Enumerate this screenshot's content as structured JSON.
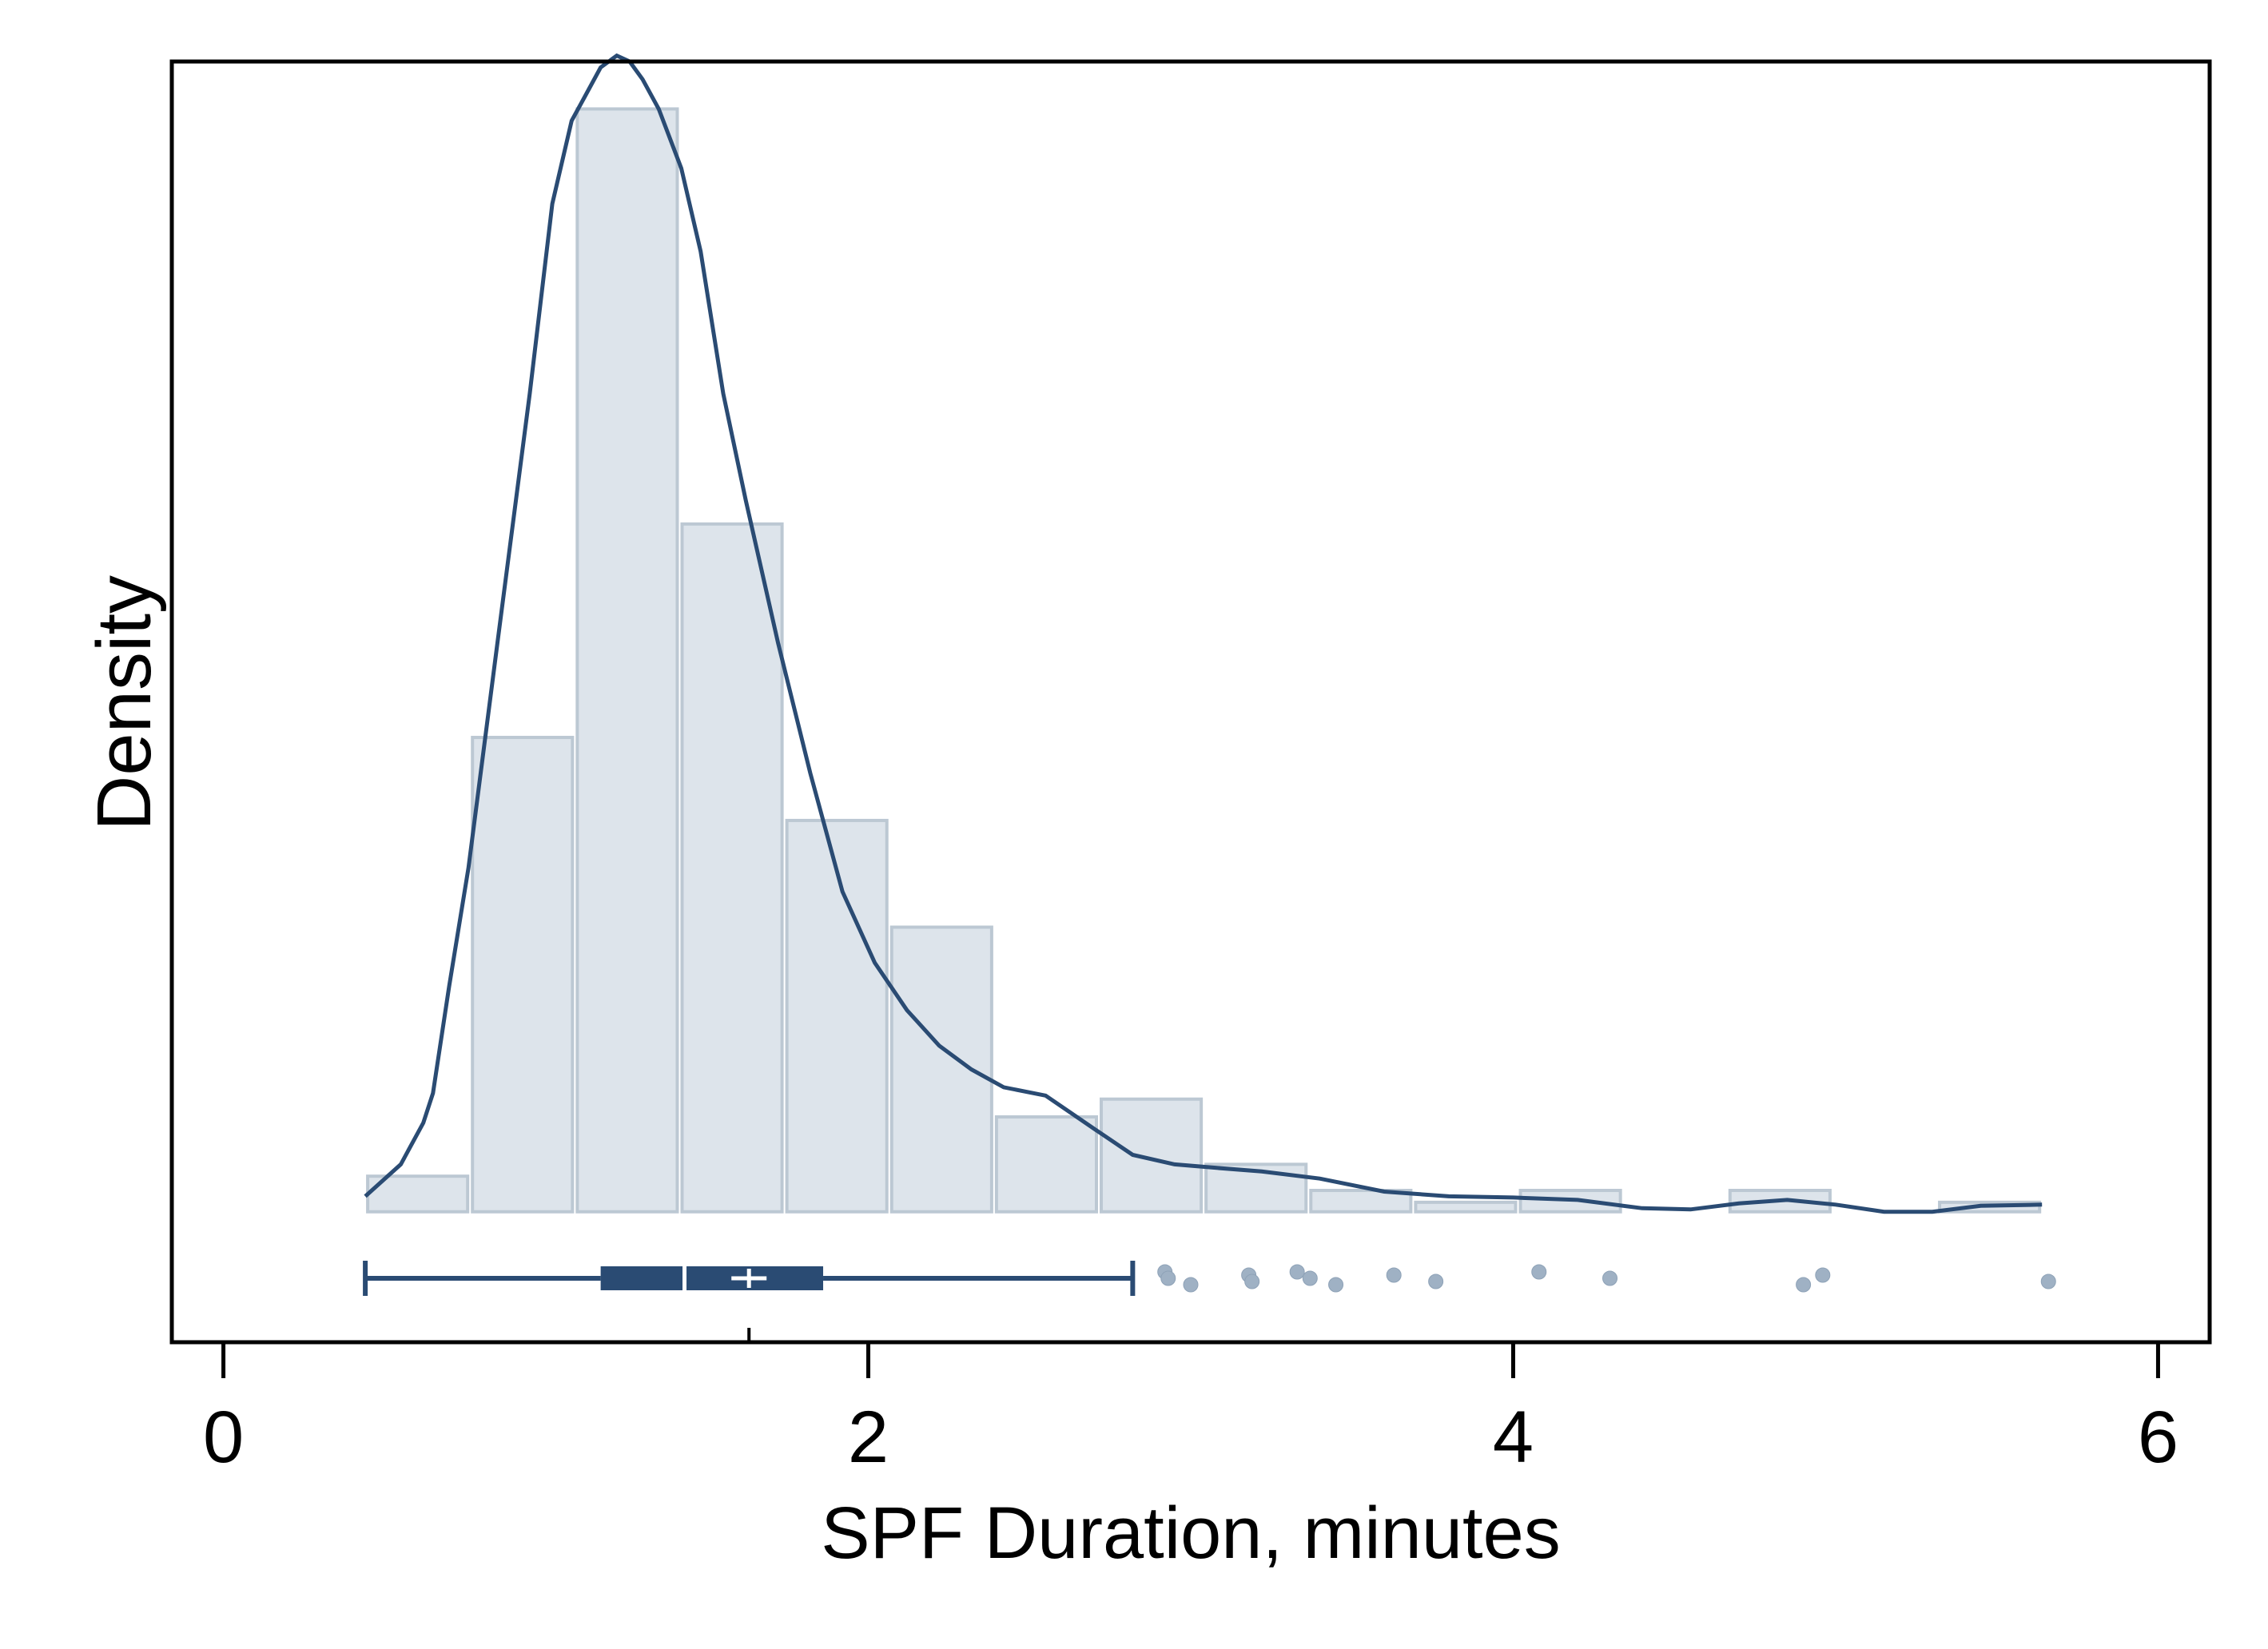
{
  "chart_data": {
    "type": "histogram",
    "xlabel": "SPF Duration, minutes",
    "ylabel": "Density",
    "xlim": [
      -0.16,
      6.16
    ],
    "ylim": [
      -0.11,
      0.97
    ],
    "x_ticks": [
      0,
      2,
      4,
      6
    ],
    "x_tick_labels": [
      "0",
      "2",
      "4",
      "6"
    ],
    "grid": false,
    "histogram": {
      "bin_edges": [
        0.44,
        0.765,
        1.09,
        1.415,
        1.74,
        2.065,
        2.39,
        2.715,
        3.04,
        3.365,
        3.69,
        4.015,
        4.34,
        4.665,
        4.99,
        5.315,
        5.64
      ],
      "density": [
        0.03,
        0.4,
        0.93,
        0.58,
        0.33,
        0.24,
        0.08,
        0.095,
        0.04,
        0.018,
        0.008,
        0.018,
        0.0,
        0.018,
        0.0,
        0.008
      ],
      "color": "#dde4eb",
      "edge_color": "#bcc8d3"
    },
    "kde": {
      "color": "#2a4b73",
      "x": [
        0.44,
        0.55,
        0.62,
        0.65,
        0.7,
        0.76,
        0.85,
        0.95,
        1.02,
        1.08,
        1.12,
        1.17,
        1.22,
        1.26,
        1.3,
        1.35,
        1.42,
        1.48,
        1.55,
        1.62,
        1.72,
        1.82,
        1.92,
        2.02,
        2.12,
        2.22,
        2.32,
        2.42,
        2.55,
        2.7,
        2.82,
        2.95,
        3.08,
        3.22,
        3.4,
        3.6,
        3.8,
        4.0,
        4.2,
        4.4,
        4.55,
        4.7,
        4.85,
        5.0,
        5.15,
        5.3,
        5.45,
        5.64
      ],
      "y": [
        0.013,
        0.04,
        0.075,
        0.1,
        0.19,
        0.29,
        0.48,
        0.69,
        0.85,
        0.92,
        0.94,
        0.965,
        0.975,
        0.97,
        0.955,
        0.93,
        0.88,
        0.81,
        0.69,
        0.6,
        0.48,
        0.37,
        0.27,
        0.21,
        0.17,
        0.14,
        0.12,
        0.105,
        0.098,
        0.07,
        0.048,
        0.04,
        0.037,
        0.034,
        0.028,
        0.017,
        0.013,
        0.012,
        0.01,
        0.003,
        0.002,
        0.007,
        0.01,
        0.006,
        0.0,
        0.0,
        0.005,
        0.006
      ]
    },
    "boxplot": {
      "min": 0.44,
      "q1": 1.17,
      "median": 1.43,
      "mean": 1.63,
      "q3": 1.86,
      "max": 2.82,
      "color": "#2a4b73",
      "outliers": [
        2.92,
        2.93,
        3.0,
        3.18,
        3.19,
        3.33,
        3.37,
        3.45,
        3.63,
        3.76,
        4.08,
        4.3,
        4.9,
        4.96,
        5.66
      ]
    }
  }
}
